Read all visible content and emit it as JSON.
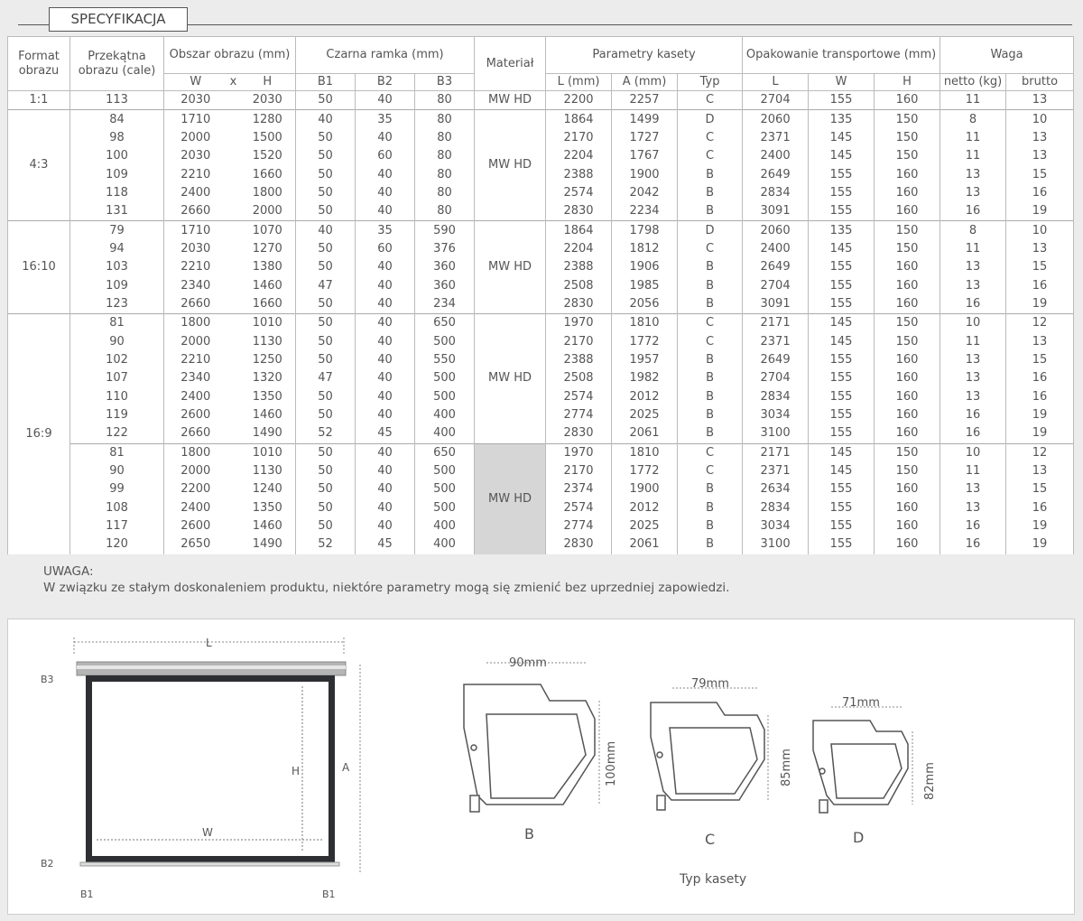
{
  "section_title": "SPECYFIKACJA",
  "table": {
    "headers": {
      "format": "Format obrazu",
      "diagonal": "Przekątna obrazu (cale)",
      "image_area": "Obszar obrazu (mm)",
      "frame": "Czarna ramka (mm)",
      "material": "Materiał",
      "cassette": "Parametry kasety",
      "packaging": "Opakowanie transportowe (mm)",
      "weight": "Waga",
      "sub": [
        "W",
        "x",
        "H",
        "B1",
        "B2",
        "B3",
        "L (mm)",
        "A (mm)",
        "Typ",
        "L",
        "W",
        "H",
        "netto (kg)",
        "brutto"
      ]
    },
    "groups": [
      {
        "format": "1:1",
        "subgroups": [
          {
            "material": "MW HD",
            "shaded": false,
            "rows": [
              [
                "113",
                "2030",
                "2030",
                "50",
                "40",
                "80",
                "2200",
                "2257",
                "C",
                "2704",
                "155",
                "160",
                "11",
                "13"
              ]
            ]
          }
        ]
      },
      {
        "format": "4:3",
        "subgroups": [
          {
            "material": "MW HD",
            "shaded": false,
            "rows": [
              [
                "84",
                "1710",
                "1280",
                "40",
                "35",
                "80",
                "1864",
                "1499",
                "D",
                "2060",
                "135",
                "150",
                "8",
                "10"
              ],
              [
                "98",
                "2000",
                "1500",
                "50",
                "40",
                "80",
                "2170",
                "1727",
                "C",
                "2371",
                "145",
                "150",
                "11",
                "13"
              ],
              [
                "100",
                "2030",
                "1520",
                "50",
                "60",
                "80",
                "2204",
                "1767",
                "C",
                "2400",
                "145",
                "150",
                "11",
                "13"
              ],
              [
                "109",
                "2210",
                "1660",
                "50",
                "40",
                "80",
                "2388",
                "1900",
                "B",
                "2649",
                "155",
                "160",
                "13",
                "15"
              ],
              [
                "118",
                "2400",
                "1800",
                "50",
                "40",
                "80",
                "2574",
                "2042",
                "B",
                "2834",
                "155",
                "160",
                "13",
                "16"
              ],
              [
                "131",
                "2660",
                "2000",
                "50",
                "40",
                "80",
                "2830",
                "2234",
                "B",
                "3091",
                "155",
                "160",
                "16",
                "19"
              ]
            ]
          }
        ]
      },
      {
        "format": "16:10",
        "subgroups": [
          {
            "material": "MW HD",
            "shaded": false,
            "rows": [
              [
                "79",
                "1710",
                "1070",
                "40",
                "35",
                "590",
                "1864",
                "1798",
                "D",
                "2060",
                "135",
                "150",
                "8",
                "10"
              ],
              [
                "94",
                "2030",
                "1270",
                "50",
                "60",
                "376",
                "2204",
                "1812",
                "C",
                "2400",
                "145",
                "150",
                "11",
                "13"
              ],
              [
                "103",
                "2210",
                "1380",
                "50",
                "40",
                "360",
                "2388",
                "1906",
                "B",
                "2649",
                "155",
                "160",
                "13",
                "15"
              ],
              [
                "109",
                "2340",
                "1460",
                "47",
                "40",
                "360",
                "2508",
                "1985",
                "B",
                "2704",
                "155",
                "160",
                "13",
                "16"
              ],
              [
                "123",
                "2660",
                "1660",
                "50",
                "40",
                "234",
                "2830",
                "2056",
                "B",
                "3091",
                "155",
                "160",
                "16",
                "19"
              ]
            ]
          }
        ]
      },
      {
        "format": "16:9",
        "subgroups": [
          {
            "material": "MW HD",
            "shaded": false,
            "rows": [
              [
                "81",
                "1800",
                "1010",
                "50",
                "40",
                "650",
                "1970",
                "1810",
                "C",
                "2171",
                "145",
                "150",
                "10",
                "12"
              ],
              [
                "90",
                "2000",
                "1130",
                "50",
                "40",
                "500",
                "2170",
                "1772",
                "C",
                "2371",
                "145",
                "150",
                "11",
                "13"
              ],
              [
                "102",
                "2210",
                "1250",
                "50",
                "40",
                "550",
                "2388",
                "1957",
                "B",
                "2649",
                "155",
                "160",
                "13",
                "15"
              ],
              [
                "107",
                "2340",
                "1320",
                "47",
                "40",
                "500",
                "2508",
                "1982",
                "B",
                "2704",
                "155",
                "160",
                "13",
                "16"
              ],
              [
                "110",
                "2400",
                "1350",
                "50",
                "40",
                "500",
                "2574",
                "2012",
                "B",
                "2834",
                "155",
                "160",
                "13",
                "16"
              ],
              [
                "119",
                "2600",
                "1460",
                "50",
                "40",
                "400",
                "2774",
                "2025",
                "B",
                "3034",
                "155",
                "160",
                "16",
                "19"
              ],
              [
                "122",
                "2660",
                "1490",
                "52",
                "45",
                "400",
                "2830",
                "2061",
                "B",
                "3100",
                "155",
                "160",
                "16",
                "19"
              ]
            ]
          },
          {
            "material": "MW HD",
            "shaded": true,
            "rows": [
              [
                "81",
                "1800",
                "1010",
                "50",
                "40",
                "650",
                "1970",
                "1810",
                "C",
                "2171",
                "145",
                "150",
                "10",
                "12"
              ],
              [
                "90",
                "2000",
                "1130",
                "50",
                "40",
                "500",
                "2170",
                "1772",
                "C",
                "2371",
                "145",
                "150",
                "11",
                "13"
              ],
              [
                "99",
                "2200",
                "1240",
                "50",
                "40",
                "500",
                "2374",
                "1900",
                "B",
                "2634",
                "155",
                "160",
                "13",
                "15"
              ],
              [
                "108",
                "2400",
                "1350",
                "50",
                "40",
                "500",
                "2574",
                "2012",
                "B",
                "2834",
                "155",
                "160",
                "13",
                "16"
              ],
              [
                "117",
                "2600",
                "1460",
                "50",
                "40",
                "400",
                "2774",
                "2025",
                "B",
                "3034",
                "155",
                "160",
                "16",
                "19"
              ],
              [
                "120",
                "2650",
                "1490",
                "52",
                "45",
                "400",
                "2830",
                "2061",
                "B",
                "3100",
                "155",
                "160",
                "16",
                "19"
              ]
            ]
          }
        ]
      }
    ]
  },
  "note": {
    "title": "UWAGA:",
    "text": "W związku ze stałym doskonaleniem produktu, niektóre parametry mogą się zmienić bez uprzedniej zapowiedzi."
  },
  "diagram": {
    "screen_labels": {
      "L": "L",
      "A": "A",
      "H": "H",
      "W": "W",
      "B1": "B1",
      "B2": "B2",
      "B3": "B3"
    },
    "cassettes": [
      {
        "type": "B",
        "width": "90mm",
        "height": "100mm"
      },
      {
        "type": "C",
        "width": "79mm",
        "height": "85mm"
      },
      {
        "type": "D",
        "width": "71mm",
        "height": "82mm"
      }
    ],
    "caption": "Typ kasety"
  }
}
